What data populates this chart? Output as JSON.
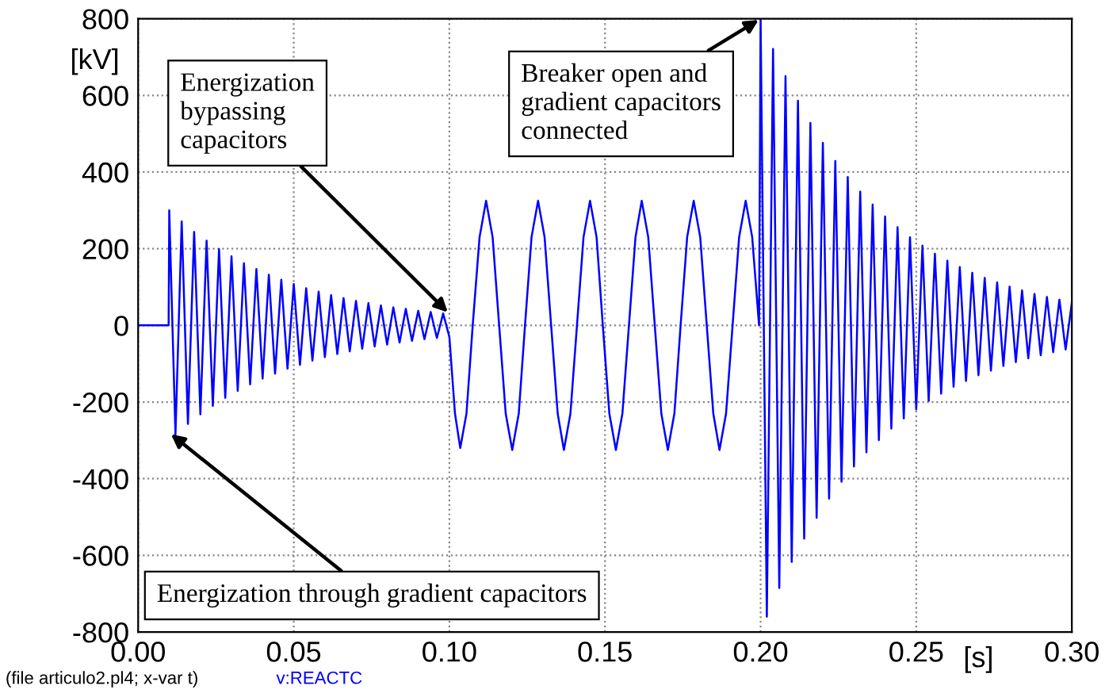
{
  "chart_data": {
    "type": "line",
    "ylabel": "[kV]",
    "xlabel": "[s]",
    "xlim": [
      0,
      0.3
    ],
    "ylim": [
      -800,
      800
    ],
    "xticks": [
      {
        "value": 0,
        "label": "0.00"
      },
      {
        "value": 0.05,
        "label": "0.05"
      },
      {
        "value": 0.1,
        "label": "0.10"
      },
      {
        "value": 0.15,
        "label": "0.15"
      },
      {
        "value": 0.2,
        "label": "0.20"
      },
      {
        "value": 0.25,
        "label": "0.25"
      },
      {
        "value": 0.3,
        "label": "0.30"
      }
    ],
    "yticks": [
      -800,
      -600,
      -400,
      -200,
      0,
      200,
      400,
      600,
      800
    ],
    "grid": true,
    "line_style": "solid",
    "series": [
      {
        "name": "v:REACTC",
        "color": "#0000ff",
        "x": [
          0,
          0.0098,
          0.01,
          0.012,
          0.014,
          0.016,
          0.018,
          0.02,
          0.022,
          0.024,
          0.026,
          0.028,
          0.03,
          0.032,
          0.034,
          0.036,
          0.038,
          0.04,
          0.042,
          0.044,
          0.046,
          0.048,
          0.05,
          0.052,
          0.054,
          0.056,
          0.058,
          0.06,
          0.062,
          0.064,
          0.066,
          0.068,
          0.07,
          0.072,
          0.074,
          0.076,
          0.078,
          0.08,
          0.082,
          0.084,
          0.086,
          0.088,
          0.09,
          0.092,
          0.094,
          0.096,
          0.098,
          0.1,
          0.1018,
          0.1035,
          0.1055,
          0.1075,
          0.1097,
          0.1118,
          0.1139,
          0.116,
          0.1181,
          0.1202,
          0.1223,
          0.1243,
          0.1264,
          0.1285,
          0.1306,
          0.1327,
          0.1348,
          0.1368,
          0.1389,
          0.141,
          0.1431,
          0.1452,
          0.1473,
          0.1493,
          0.1514,
          0.1535,
          0.1556,
          0.1577,
          0.1598,
          0.1618,
          0.1639,
          0.166,
          0.1681,
          0.1702,
          0.1723,
          0.1743,
          0.1764,
          0.1785,
          0.1806,
          0.1827,
          0.1848,
          0.1868,
          0.1889,
          0.191,
          0.1931,
          0.1952,
          0.1973,
          0.1995,
          0.2,
          0.202,
          0.204,
          0.206,
          0.208,
          0.21,
          0.212,
          0.214,
          0.216,
          0.218,
          0.22,
          0.222,
          0.224,
          0.226,
          0.228,
          0.23,
          0.232,
          0.234,
          0.236,
          0.238,
          0.24,
          0.242,
          0.244,
          0.246,
          0.248,
          0.25,
          0.252,
          0.254,
          0.256,
          0.258,
          0.26,
          0.262,
          0.264,
          0.266,
          0.268,
          0.27,
          0.272,
          0.274,
          0.276,
          0.278,
          0.28,
          0.282,
          0.284,
          0.286,
          0.288,
          0.29,
          0.292,
          0.294,
          0.296,
          0.298,
          0.3
        ],
        "values": [
          0,
          0,
          300,
          -285,
          271,
          -257,
          244,
          -232,
          221,
          -210,
          199,
          -189,
          180,
          -171,
          162,
          -154,
          147,
          -139,
          132,
          -126,
          119,
          -113,
          108,
          -103,
          97,
          -92,
          88,
          -83,
          79,
          -75,
          71,
          -68,
          64,
          -61,
          58,
          -55,
          52,
          -50,
          47,
          -45,
          43,
          -40,
          38,
          -36,
          35,
          -33,
          31,
          -30,
          -230,
          -320,
          -230,
          0,
          230,
          325,
          230,
          0,
          -230,
          -325,
          -230,
          0,
          230,
          325,
          230,
          0,
          -230,
          -325,
          -230,
          0,
          230,
          325,
          230,
          0,
          -230,
          -325,
          -230,
          0,
          230,
          325,
          230,
          0,
          -230,
          -325,
          -230,
          0,
          230,
          325,
          230,
          0,
          -230,
          -325,
          -230,
          0,
          230,
          325,
          230,
          0,
          800,
          -760,
          721,
          -685,
          650,
          -617,
          586,
          -556,
          528,
          -502,
          476,
          -452,
          429,
          -408,
          387,
          -368,
          349,
          -331,
          315,
          -299,
          284,
          -269,
          256,
          -243,
          230,
          -219,
          208,
          -197,
          187,
          -178,
          169,
          -160,
          152,
          -145,
          137,
          -130,
          124,
          -118,
          112,
          -106,
          101,
          -96,
          91,
          -86,
          82,
          -78,
          74,
          -70,
          67,
          -63,
          60
        ]
      }
    ],
    "annotations": [
      {
        "text": "Energization\nbypassing\ncapacitors",
        "x": 0.1,
        "y": 30
      },
      {
        "text": "Breaker open and\ngradient capacitors\nconnected",
        "x": 0.2,
        "y": 800
      },
      {
        "text": "Energization through gradient capacitors",
        "x": 0.01,
        "y": -280
      },
      "(file articulo2.pl4; x-var t)"
    ]
  }
}
